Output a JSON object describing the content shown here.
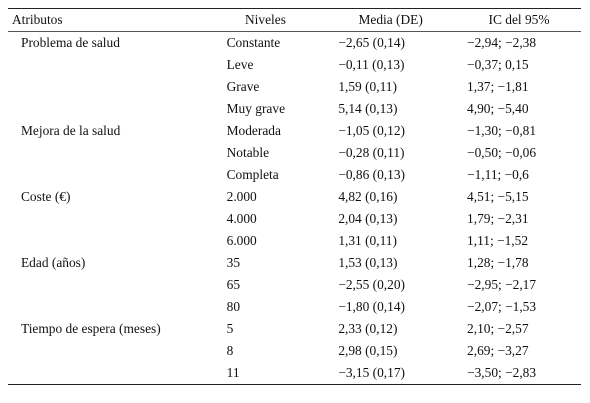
{
  "table": {
    "headers": {
      "attributes": "Atributos",
      "levels": "Niveles",
      "mean": "Media (DE)",
      "ci": "IC del 95%"
    },
    "rows": [
      {
        "attribute": "Problema de salud",
        "level": "Constante",
        "mean": "−2,65 (0,14)",
        "ci": "−2,94; −2,38"
      },
      {
        "attribute": "",
        "level": "Leve",
        "mean": "−0,11 (0,13)",
        "ci": "−0,37; 0,15"
      },
      {
        "attribute": "",
        "level": "Grave",
        "mean": "1,59 (0,11)",
        "ci": "1,37; −1,81"
      },
      {
        "attribute": "",
        "level": "Muy grave",
        "mean": "5,14 (0,13)",
        "ci": "4,90; −5,40"
      },
      {
        "attribute": "Mejora de la salud",
        "level": "Moderada",
        "mean": "−1,05 (0,12)",
        "ci": "−1,30; −0,81"
      },
      {
        "attribute": "",
        "level": "Notable",
        "mean": "−0,28 (0,11)",
        "ci": "−0,50; −0,06"
      },
      {
        "attribute": "",
        "level": "Completa",
        "mean": "−0,86 (0,13)",
        "ci": "−1,11; −0,6"
      },
      {
        "attribute": "Coste (€)",
        "level": "2.000",
        "mean": "4,82 (0,16)",
        "ci": "4,51; −5,15"
      },
      {
        "attribute": "",
        "level": "4.000",
        "mean": "2,04 (0,13)",
        "ci": "1,79; −2,31"
      },
      {
        "attribute": "",
        "level": "6.000",
        "mean": "1,31 (0,11)",
        "ci": "1,11; −1,52"
      },
      {
        "attribute": "Edad (años)",
        "level": "35",
        "mean": "1,53 (0,13)",
        "ci": "1,28; −1,78"
      },
      {
        "attribute": "",
        "level": "65",
        "mean": "−2,55 (0,20)",
        "ci": "−2,95; −2,17"
      },
      {
        "attribute": "",
        "level": "80",
        "mean": "−1,80 (0,14)",
        "ci": "−2,07; −1,53"
      },
      {
        "attribute": "Tiempo de espera (meses)",
        "level": "5",
        "mean": "2,33 (0,12)",
        "ci": "2,10; −2,57"
      },
      {
        "attribute": "",
        "level": "8",
        "mean": "2,98 (0,15)",
        "ci": "2,69; −3,27"
      },
      {
        "attribute": "",
        "level": "11",
        "mean": "−3,15 (0,17)",
        "ci": "−3,50; −2,83"
      }
    ]
  }
}
